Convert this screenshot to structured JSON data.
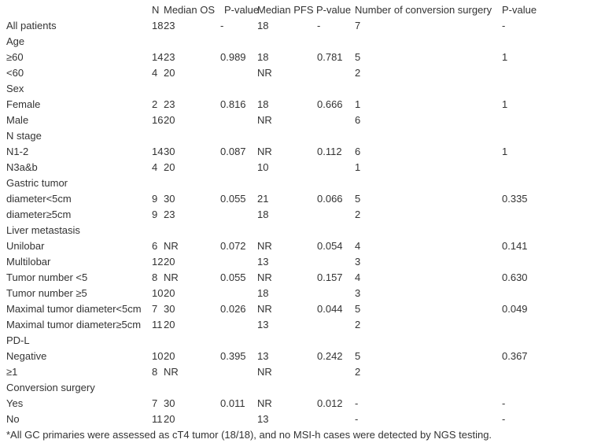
{
  "table": {
    "headers": {
      "n": "N",
      "median_os": "Median OS",
      "p_value_os": "P-value",
      "median_pfs": "Median PFS",
      "p_value_pfs": "P-value",
      "conversion": "Number of conversion surgery",
      "p_value_conv": "P-value"
    },
    "rows": [
      {
        "label": "All patients",
        "n": "18",
        "os": "23",
        "p1": "-",
        "pfs": "18",
        "p2": "-",
        "conv": "7",
        "p3": "-"
      },
      {
        "label": "Age",
        "n": "",
        "os": "",
        "p1": "",
        "pfs": "",
        "p2": "",
        "conv": "",
        "p3": ""
      },
      {
        "label": "≥60",
        "n": "14",
        "os": "23",
        "p1": "0.989",
        "pfs": "18",
        "p2": "0.781",
        "conv": "5",
        "p3": "1"
      },
      {
        "label": "<60",
        "n": "4",
        "os": "20",
        "p1": "",
        "pfs": "NR",
        "p2": "",
        "conv": "2",
        "p3": ""
      },
      {
        "label": "Sex",
        "n": "",
        "os": "",
        "p1": "",
        "pfs": "",
        "p2": "",
        "conv": "",
        "p3": ""
      },
      {
        "label": "Female",
        "n": "2",
        "os": "23",
        "p1": "0.816",
        "pfs": "18",
        "p2": "0.666",
        "conv": "1",
        "p3": "1"
      },
      {
        "label": "Male",
        "n": "16",
        "os": "20",
        "p1": "",
        "pfs": "NR",
        "p2": "",
        "conv": "6",
        "p3": ""
      },
      {
        "label": "N stage",
        "n": "",
        "os": "",
        "p1": "",
        "pfs": "",
        "p2": "",
        "conv": "",
        "p3": ""
      },
      {
        "label": "N1-2",
        "n": "14",
        "os": "30",
        "p1": "0.087",
        "pfs": "NR",
        "p2": "0.112",
        "conv": "6",
        "p3": "1"
      },
      {
        "label": "N3a&b",
        "n": "4",
        "os": "20",
        "p1": "",
        "pfs": "10",
        "p2": "",
        "conv": "1",
        "p3": ""
      },
      {
        "label": "Gastric tumor",
        "n": "",
        "os": "",
        "p1": "",
        "pfs": "",
        "p2": "",
        "conv": "",
        "p3": ""
      },
      {
        "label": "diameter<5cm",
        "n": "9",
        "os": "30",
        "p1": "0.055",
        "pfs": "21",
        "p2": "0.066",
        "conv": "5",
        "p3": "0.335"
      },
      {
        "label": "diameter≥5cm",
        "n": "9",
        "os": "23",
        "p1": "",
        "pfs": "18",
        "p2": "",
        "conv": "2",
        "p3": ""
      },
      {
        "label": "Liver metastasis",
        "n": "",
        "os": "",
        "p1": "",
        "pfs": "",
        "p2": "",
        "conv": "",
        "p3": ""
      },
      {
        "label": "Unilobar",
        "n": "6",
        "os": "NR",
        "p1": "0.072",
        "pfs": "NR",
        "p2": "0.054",
        "conv": "4",
        "p3": "0.141"
      },
      {
        "label": "Multilobar",
        "n": "12",
        "os": "20",
        "p1": "",
        "pfs": "13",
        "p2": "",
        "conv": "3",
        "p3": ""
      },
      {
        "label": "Tumor number <5",
        "n": "8",
        "os": "NR",
        "p1": "0.055",
        "pfs": "NR",
        "p2": "0.157",
        "conv": "4",
        "p3": "0.630"
      },
      {
        "label": "Tumor number ≥5",
        "n": "10",
        "os": "20",
        "p1": "",
        "pfs": "18",
        "p2": "",
        "conv": "3",
        "p3": ""
      },
      {
        "label": "Maximal tumor diameter<5cm",
        "n": "7",
        "os": "30",
        "p1": "0.026",
        "pfs": "NR",
        "p2": "0.044",
        "conv": "5",
        "p3": "0.049"
      },
      {
        "label": "Maximal tumor diameter≥5cm",
        "n": "11",
        "os": "20",
        "p1": "",
        "pfs": "13",
        "p2": "",
        "conv": "2",
        "p3": ""
      },
      {
        "label": "PD-L",
        "n": "",
        "os": "",
        "p1": "",
        "pfs": "",
        "p2": "",
        "conv": "",
        "p3": ""
      },
      {
        "label": "Negative",
        "n": "10",
        "os": "20",
        "p1": "0.395",
        "pfs": "13",
        "p2": "0.242",
        "conv": "5",
        "p3": "0.367"
      },
      {
        "label": "≥1",
        "n": "8",
        "os": "NR",
        "p1": "",
        "pfs": "NR",
        "p2": "",
        "conv": "2",
        "p3": ""
      },
      {
        "label": "Conversion surgery",
        "n": "",
        "os": "",
        "p1": "",
        "pfs": "",
        "p2": "",
        "conv": "",
        "p3": ""
      },
      {
        "label": "Yes",
        "n": "7",
        "os": "30",
        "p1": "0.011",
        "pfs": "NR",
        "p2": "0.012",
        "conv": "-",
        "p3": "-"
      },
      {
        "label": "No",
        "n": "11",
        "os": "20",
        "p1": "",
        "pfs": "13",
        "p2": "",
        "conv": "-",
        "p3": "-"
      }
    ]
  },
  "footnote": "*All GC primaries were assessed as cT4 tumor (18/18), and no MSI-h cases were detected by NGS testing."
}
